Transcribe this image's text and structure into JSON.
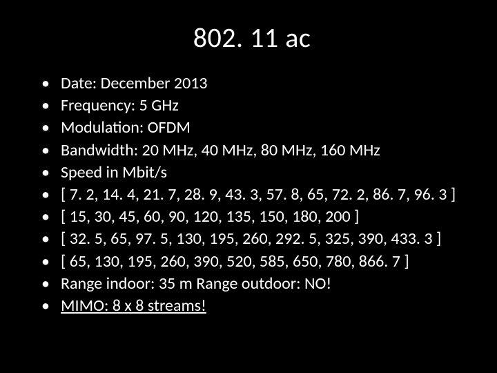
{
  "slide": {
    "title": "802. 11 ac",
    "title_fontsize": 40,
    "bullet_fontsize": 24,
    "background_color": "#000000",
    "text_color": "#ffffff",
    "font_family": "Calibri",
    "bullets": [
      {
        "text": "Date: December 2013",
        "underline": false
      },
      {
        "text": "Frequency:  5 GHz",
        "underline": false
      },
      {
        "text": "Modulation: OFDM",
        "underline": false
      },
      {
        "text": "Bandwidth: 20 MHz, 40 MHz, 80 MHz, 160 MHz",
        "underline": false
      },
      {
        "text": "Speed in Mbit/s",
        "underline": false
      },
      {
        "text": "[ 7. 2, 14. 4, 21. 7, 28. 9, 43. 3, 57. 8, 65, 72. 2, 86. 7, 96. 3 ]",
        "underline": false
      },
      {
        "text": "[ 15, 30, 45, 60, 90, 120, 135, 150, 180, 200 ]",
        "underline": false
      },
      {
        "text": "[ 32. 5, 65, 97. 5, 130, 195, 260, 292. 5, 325, 390, 433. 3 ]",
        "underline": false
      },
      {
        "text": "[ 65, 130, 195, 260, 390, 520, 585, 650, 780, 866. 7 ]",
        "underline": false
      },
      {
        "text": "Range indoor: 35 m Range outdoor: NO!",
        "underline": false
      },
      {
        "text": "MIMO: 8 x 8 streams!",
        "underline": true
      }
    ]
  }
}
